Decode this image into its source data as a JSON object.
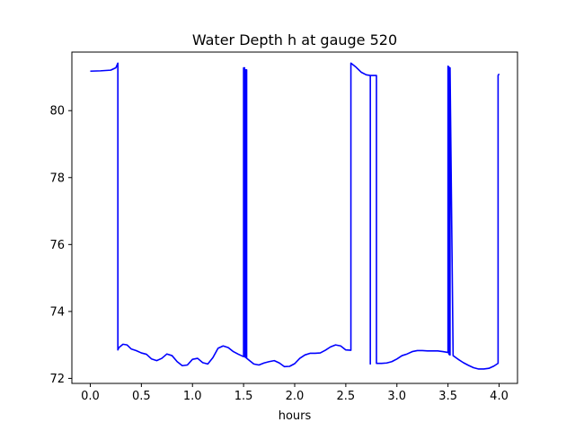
{
  "chart_data": {
    "type": "line",
    "title": "Water Depth h at gauge 520",
    "xlabel": "hours",
    "ylabel": "",
    "xlim": [
      -0.18,
      4.18
    ],
    "ylim": [
      71.85,
      81.75
    ],
    "xticks": [
      0.0,
      0.5,
      1.0,
      1.5,
      2.0,
      2.5,
      3.0,
      3.5,
      4.0
    ],
    "xtick_labels": [
      "0.0",
      "0.5",
      "1.0",
      "1.5",
      "2.0",
      "2.5",
      "3.0",
      "3.5",
      "4.0"
    ],
    "yticks": [
      72,
      74,
      76,
      78,
      80
    ],
    "ytick_labels": [
      "72",
      "74",
      "76",
      "78",
      "80"
    ],
    "grid": false,
    "series": [
      {
        "color": "#0000ff",
        "x": [
          0.0,
          0.1,
          0.2,
          0.25,
          0.27,
          0.27,
          0.28,
          0.32,
          0.36,
          0.4,
          0.45,
          0.5,
          0.55,
          0.6,
          0.65,
          0.7,
          0.75,
          0.8,
          0.85,
          0.9,
          0.95,
          1.0,
          1.05,
          1.1,
          1.15,
          1.2,
          1.25,
          1.3,
          1.35,
          1.4,
          1.45,
          1.5,
          1.5,
          1.51,
          1.51,
          1.52,
          1.52,
          1.53,
          1.53,
          1.6,
          1.65,
          1.7,
          1.75,
          1.8,
          1.85,
          1.9,
          1.95,
          2.0,
          2.05,
          2.1,
          2.15,
          2.2,
          2.25,
          2.3,
          2.35,
          2.4,
          2.45,
          2.5,
          2.55,
          2.55,
          2.6,
          2.65,
          2.7,
          2.74,
          2.74,
          2.74,
          2.75,
          2.78,
          2.8,
          2.8,
          2.85,
          2.9,
          2.95,
          3.0,
          3.05,
          3.1,
          3.15,
          3.2,
          3.25,
          3.3,
          3.35,
          3.4,
          3.45,
          3.49,
          3.5,
          3.5,
          3.51,
          3.51,
          3.52,
          3.52,
          3.55,
          3.6,
          3.65,
          3.7,
          3.75,
          3.8,
          3.85,
          3.9,
          3.95,
          3.99,
          3.99,
          4.0
        ],
        "y": [
          81.18,
          81.19,
          81.21,
          81.28,
          81.42,
          72.85,
          72.92,
          73.02,
          73.0,
          72.88,
          72.83,
          72.76,
          72.72,
          72.58,
          72.53,
          72.6,
          72.73,
          72.68,
          72.5,
          72.38,
          72.4,
          72.57,
          72.6,
          72.47,
          72.43,
          72.62,
          72.9,
          72.97,
          72.92,
          72.8,
          72.72,
          72.65,
          81.28,
          81.28,
          72.66,
          72.62,
          81.22,
          81.22,
          72.6,
          72.43,
          72.4,
          72.46,
          72.5,
          72.53,
          72.46,
          72.35,
          72.36,
          72.44,
          72.6,
          72.7,
          72.75,
          72.75,
          72.76,
          72.84,
          72.94,
          73.0,
          72.97,
          72.85,
          72.84,
          81.42,
          81.3,
          81.15,
          81.07,
          81.05,
          72.43,
          81.05,
          81.05,
          81.05,
          81.05,
          72.45,
          72.45,
          72.46,
          72.5,
          72.58,
          72.68,
          72.73,
          72.8,
          72.83,
          72.83,
          72.82,
          72.82,
          72.82,
          72.8,
          72.78,
          72.77,
          81.33,
          81.3,
          72.72,
          72.7,
          81.28,
          72.68,
          72.57,
          72.47,
          72.39,
          72.32,
          72.28,
          72.28,
          72.3,
          72.37,
          72.45,
          81.05,
          81.1
        ]
      }
    ]
  }
}
